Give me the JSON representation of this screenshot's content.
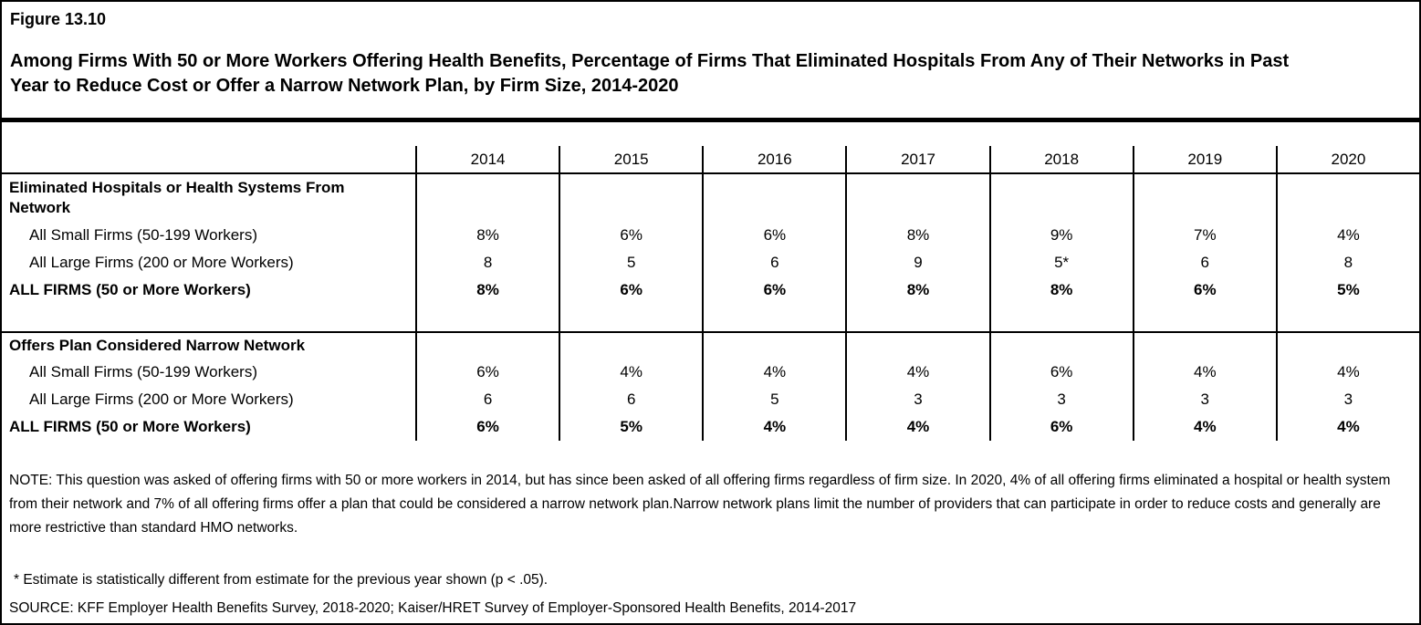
{
  "figure": {
    "label": "Figure 13.10",
    "title": "Among Firms With 50 or More Workers Offering Health Benefits, Percentage of Firms That Eliminated Hospitals From Any of Their Networks in Past Year to Reduce Cost or Offer a Narrow Network Plan, by Firm Size, 2014-2020"
  },
  "table": {
    "years": [
      "2014",
      "2015",
      "2016",
      "2017",
      "2018",
      "2019",
      "2020"
    ],
    "sections": [
      {
        "header": "Eliminated Hospitals or Health Systems From Network",
        "rows": [
          {
            "label": "All Small Firms (50-199 Workers)",
            "values": [
              "8%",
              "6%",
              "6%",
              "8%",
              "9%",
              "7%",
              "4%"
            ]
          },
          {
            "label": "All Large Firms (200 or More Workers)",
            "values": [
              "8",
              "5",
              "6",
              "9",
              "5*",
              "6",
              "8"
            ]
          },
          {
            "label": "ALL FIRMS (50 or More Workers)",
            "values": [
              "8%",
              "6%",
              "6%",
              "8%",
              "8%",
              "6%",
              "5%"
            ]
          }
        ]
      },
      {
        "header": "Offers Plan Considered Narrow Network",
        "rows": [
          {
            "label": "All Small Firms (50-199 Workers)",
            "values": [
              "6%",
              "4%",
              "4%",
              "4%",
              "6%",
              "4%",
              "4%"
            ]
          },
          {
            "label": "All Large Firms (200 or More Workers)",
            "values": [
              "6",
              "6",
              "5",
              "3",
              "3",
              "3",
              "3"
            ]
          },
          {
            "label": "ALL FIRMS (50 or More Workers)",
            "values": [
              "6%",
              "5%",
              "4%",
              "4%",
              "6%",
              "4%",
              "4%"
            ]
          }
        ]
      }
    ]
  },
  "notes": {
    "note": "NOTE: This question was asked of offering firms with 50 or more workers in 2014, but has since been asked of all offering firms regardless of firm size. In 2020, 4% of all offering firms eliminated a hospital or health system from their network and 7% of all offering firms offer a plan that could be considered a narrow network plan.Narrow network plans limit the number of providers that can participate in order to reduce costs and generally are more restrictive than standard HMO networks.",
    "footnote": "* Estimate is statistically different from estimate for the previous year shown (p < .05).",
    "source": "SOURCE: KFF Employer Health Benefits Survey, 2018-2020; Kaiser/HRET Survey of Employer-Sponsored Health Benefits, 2014-2017"
  },
  "colors": {
    "background": "#ffffff",
    "border": "#000000",
    "text": "#000000"
  }
}
